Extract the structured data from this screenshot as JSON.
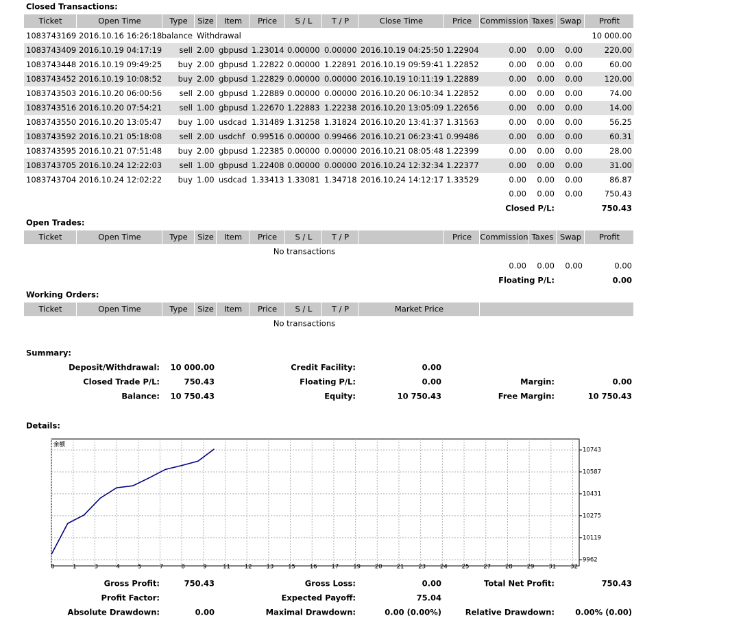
{
  "closed": {
    "title": "Closed Transactions:",
    "columns": [
      "Ticket",
      "Open Time",
      "Type",
      "Size",
      "Item",
      "Price",
      "S / L",
      "T / P",
      "Close Time",
      "Price",
      "Commission",
      "Taxes",
      "Swap",
      "Profit"
    ],
    "rows": [
      [
        "1083743169",
        "2016.10.16 16:26:18",
        "balance",
        "Withdrawal",
        null,
        null,
        null,
        null,
        null,
        null,
        null,
        null,
        null,
        "10 000.00"
      ],
      [
        "1083743409",
        "2016.10.19 04:17:19",
        "sell",
        "2.00",
        "gbpusd",
        "1.23014",
        "0.00000",
        "0.00000",
        "2016.10.19 04:25:50",
        "1.22904",
        "0.00",
        "0.00",
        "0.00",
        "220.00"
      ],
      [
        "1083743448",
        "2016.10.19 09:49:25",
        "buy",
        "2.00",
        "gbpusd",
        "1.22822",
        "0.00000",
        "1.22891",
        "2016.10.19 09:59:41",
        "1.22852",
        "0.00",
        "0.00",
        "0.00",
        "60.00"
      ],
      [
        "1083743452",
        "2016.10.19 10:08:52",
        "buy",
        "2.00",
        "gbpusd",
        "1.22829",
        "0.00000",
        "0.00000",
        "2016.10.19 10:11:19",
        "1.22889",
        "0.00",
        "0.00",
        "0.00",
        "120.00"
      ],
      [
        "1083743503",
        "2016.10.20 06:00:56",
        "sell",
        "2.00",
        "gbpusd",
        "1.22889",
        "0.00000",
        "0.00000",
        "2016.10.20 06:10:34",
        "1.22852",
        "0.00",
        "0.00",
        "0.00",
        "74.00"
      ],
      [
        "1083743516",
        "2016.10.20 07:54:21",
        "sell",
        "1.00",
        "gbpusd",
        "1.22670",
        "1.22883",
        "1.22238",
        "2016.10.20 13:05:09",
        "1.22656",
        "0.00",
        "0.00",
        "0.00",
        "14.00"
      ],
      [
        "1083743550",
        "2016.10.20 13:05:47",
        "buy",
        "1.00",
        "usdcad",
        "1.31489",
        "1.31258",
        "1.31824",
        "2016.10.20 13:41:37",
        "1.31563",
        "0.00",
        "0.00",
        "0.00",
        "56.25"
      ],
      [
        "1083743592",
        "2016.10.21 05:18:08",
        "sell",
        "2.00",
        "usdchf",
        "0.99516",
        "0.00000",
        "0.99466",
        "2016.10.21 06:23:41",
        "0.99486",
        "0.00",
        "0.00",
        "0.00",
        "60.31"
      ],
      [
        "1083743595",
        "2016.10.21 07:51:48",
        "buy",
        "2.00",
        "gbpusd",
        "1.22385",
        "0.00000",
        "0.00000",
        "2016.10.21 08:05:48",
        "1.22399",
        "0.00",
        "0.00",
        "0.00",
        "28.00"
      ],
      [
        "1083743705",
        "2016.10.24 12:22:03",
        "sell",
        "1.00",
        "gbpusd",
        "1.22408",
        "0.00000",
        "0.00000",
        "2016.10.24 12:32:34",
        "1.22377",
        "0.00",
        "0.00",
        "0.00",
        "31.00"
      ],
      [
        "1083743704",
        "2016.10.24 12:02:22",
        "buy",
        "1.00",
        "usdcad",
        "1.33413",
        "1.33081",
        "1.34718",
        "2016.10.24 14:12:17",
        "1.33529",
        "0.00",
        "0.00",
        "0.00",
        "86.87"
      ]
    ],
    "totals": [
      "0.00",
      "0.00",
      "0.00",
      "750.43"
    ],
    "pl_label": "Closed P/L:",
    "pl_value": "750.43"
  },
  "open": {
    "title": "Open Trades:",
    "columns": [
      "Ticket",
      "Open Time",
      "Type",
      "Size",
      "Item",
      "Price",
      "S / L",
      "T / P",
      "Price",
      "Commission",
      "Taxes",
      "Swap",
      "Profit"
    ],
    "empty": "No transactions",
    "totals": [
      "0.00",
      "0.00",
      "0.00",
      "0.00"
    ],
    "pl_label": "Floating P/L:",
    "pl_value": "0.00"
  },
  "working": {
    "title": "Working Orders:",
    "columns": [
      "Ticket",
      "Open Time",
      "Type",
      "Size",
      "Item",
      "Price",
      "S / L",
      "T / P",
      "Market Price"
    ],
    "empty": "No transactions"
  },
  "summary": {
    "title": "Summary:",
    "items": [
      {
        "label": "Deposit/Withdrawal:",
        "value": "10 000.00"
      },
      {
        "label": "Credit Facility:",
        "value": "0.00"
      },
      {
        "label": "Closed Trade P/L:",
        "value": "750.43"
      },
      {
        "label": "Floating P/L:",
        "value": "0.00"
      },
      {
        "label": "Margin:",
        "value": "0.00"
      },
      {
        "label": "Balance:",
        "value": "10 750.43"
      },
      {
        "label": "Equity:",
        "value": "10 750.43"
      },
      {
        "label": "Free Margin:",
        "value": "10 750.43"
      }
    ]
  },
  "details": {
    "title": "Details:",
    "chart": {
      "type": "line",
      "title": "余额",
      "color": "#000080",
      "x": [
        0,
        1,
        2,
        3,
        4,
        5,
        6,
        7,
        8,
        9,
        10
      ],
      "values": [
        10000,
        10220,
        10280,
        10400,
        10474,
        10488,
        10544.25,
        10604.56,
        10632.56,
        10663.56,
        10750.43
      ],
      "xlim": [
        0,
        32.4
      ],
      "ylim": [
        9918,
        10821
      ],
      "grid": true,
      "xticks": [
        0,
        {
          "value": 1.333,
          "label": "1"
        },
        {
          "value": 2.667,
          "label": "3"
        },
        4,
        {
          "value": 5.333,
          "label": "5"
        },
        {
          "value": 6.667,
          "label": "7"
        },
        8,
        {
          "value": 9.333,
          "label": "9"
        },
        {
          "value": 10.667,
          "label": "11"
        },
        12,
        {
          "value": 13.333,
          "label": "13"
        },
        {
          "value": 14.667,
          "label": "15"
        },
        16,
        {
          "value": 17.333,
          "label": "17"
        },
        {
          "value": 18.667,
          "label": "19"
        },
        20,
        {
          "value": 21.333,
          "label": "21"
        },
        {
          "value": 22.667,
          "label": "23"
        },
        24,
        {
          "value": 25.333,
          "label": "25"
        },
        {
          "value": 26.667,
          "label": "27"
        },
        28,
        {
          "value": 29.333,
          "label": "29"
        },
        {
          "value": 30.667,
          "label": "31"
        },
        32
      ],
      "yticks": [
        9962,
        10119,
        10275,
        10431,
        10587,
        10743
      ]
    },
    "stats": [
      {
        "label": "Gross Profit:",
        "value": "750.43"
      },
      {
        "label": "Gross Loss:",
        "value": "0.00"
      },
      {
        "label": "Total Net Profit:",
        "value": "750.43"
      },
      {
        "label": "Profit Factor:"
      },
      {
        "label": "Expected Payoff:",
        "value": "75.04"
      },
      {
        "label": "Absolute Drawdown:",
        "value": "0.00"
      },
      {
        "label": "Maximal Drawdown:",
        "value": "0.00 (0.00%)"
      },
      {
        "label": "Relative Drawdown:",
        "value": "0.00% (0.00)"
      }
    ]
  }
}
